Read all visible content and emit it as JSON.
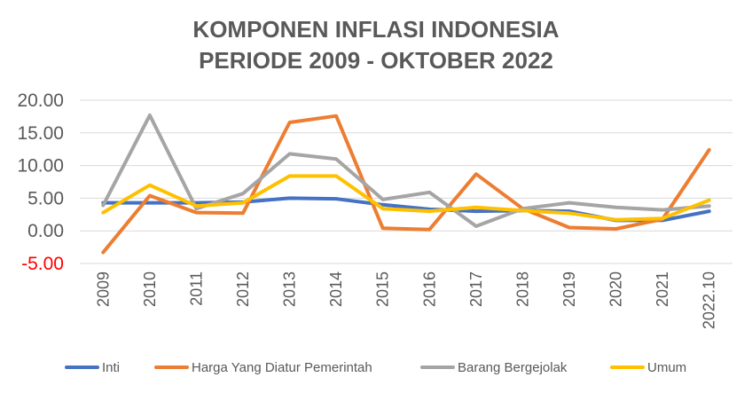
{
  "chart_data": {
    "type": "line",
    "title_lines": [
      "KOMPONEN INFLASI INDONESIA",
      "PERIODE 2009 - OKTOBER 2022"
    ],
    "xlabel": "",
    "ylabel": "",
    "categories": [
      "2009",
      "2010",
      "2011",
      "2012",
      "2013",
      "2014",
      "2015",
      "2016",
      "2017",
      "2018",
      "2019",
      "2020",
      "2021",
      "2022.10"
    ],
    "y_ticks": [
      "20.00",
      "15.00",
      "10.00",
      "5.00",
      "0.00",
      "-5.00"
    ],
    "ylim": [
      -5,
      20
    ],
    "grid": true,
    "legend_position": "bottom",
    "series": [
      {
        "name": "Inti",
        "color": "#4472c4",
        "values": [
          4.3,
          4.3,
          4.3,
          4.4,
          5.0,
          4.9,
          4.0,
          3.3,
          3.0,
          3.1,
          3.0,
          1.6,
          1.6,
          3.0
        ]
      },
      {
        "name": "Harga Yang Diatur Pemerintah",
        "color": "#ed7d31",
        "values": [
          -3.3,
          5.4,
          2.8,
          2.7,
          16.6,
          17.6,
          0.4,
          0.2,
          8.7,
          3.4,
          0.5,
          0.3,
          1.8,
          12.4
        ]
      },
      {
        "name": "Barang Bergejolak",
        "color": "#a5a5a5",
        "values": [
          3.9,
          17.7,
          3.4,
          5.7,
          11.8,
          11.0,
          4.8,
          5.9,
          0.7,
          3.4,
          4.3,
          3.6,
          3.2,
          3.8
        ]
      },
      {
        "name": "Umum",
        "color": "#ffc000",
        "values": [
          2.8,
          7.0,
          3.8,
          4.3,
          8.4,
          8.4,
          3.4,
          3.0,
          3.6,
          3.1,
          2.7,
          1.7,
          1.9,
          4.7
        ]
      }
    ]
  }
}
